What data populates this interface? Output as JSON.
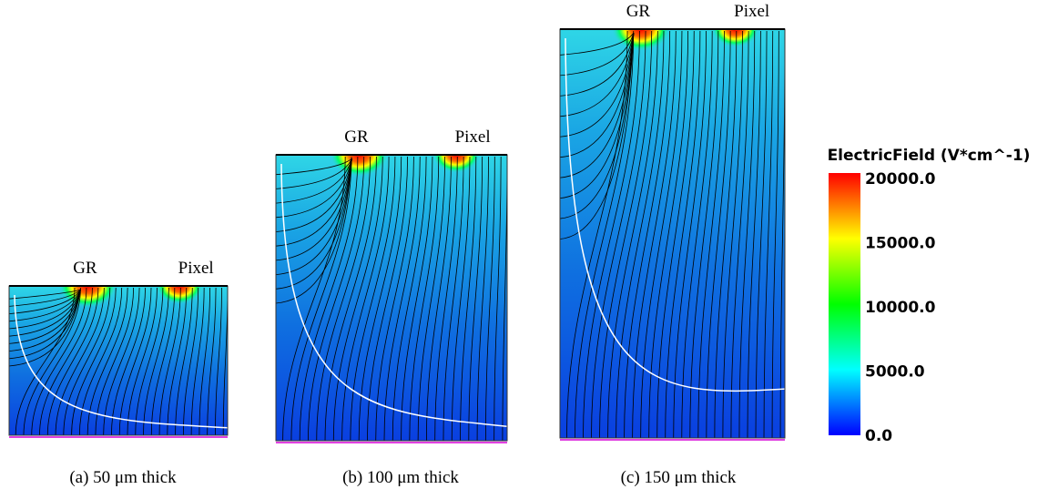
{
  "panels": [
    {
      "gr_label": "GR",
      "pixel_label": "Pixel",
      "caption": "(a) 50 μm thick"
    },
    {
      "gr_label": "GR",
      "pixel_label": "Pixel",
      "caption": "(b) 100 μm thick"
    },
    {
      "gr_label": "GR",
      "pixel_label": "Pixel",
      "caption": "(c) 150 μm thick"
    }
  ],
  "colorbar": {
    "title": "ElectricField (V*cm^-1)",
    "ticks": [
      "20000.0",
      "15000.0",
      "10000.0",
      "5000.0",
      "0.0"
    ]
  }
}
